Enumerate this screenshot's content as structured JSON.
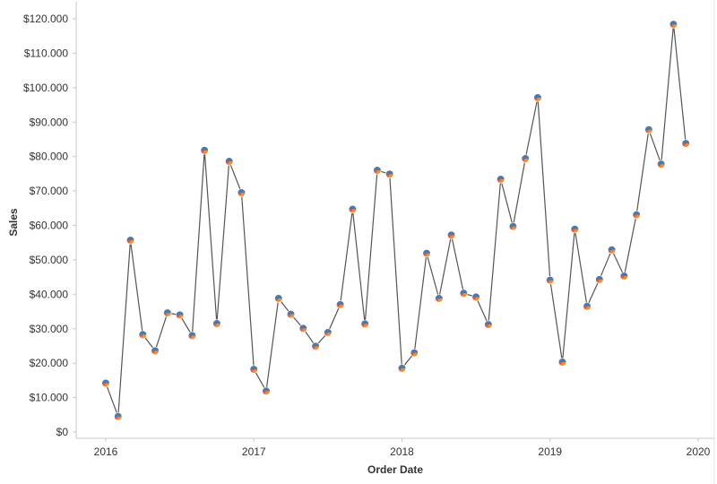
{
  "chart_data": {
    "type": "line",
    "xlabel": "Order Date",
    "ylabel": "Sales",
    "x_ticks": [
      "2016",
      "2017",
      "2018",
      "2019",
      "2020"
    ],
    "y_ticks": [
      "$0",
      "$10.000",
      "$20.000",
      "$30.000",
      "$40.000",
      "$50.000",
      "$60.000",
      "$70.000",
      "$80.000",
      "$90.000",
      "$100.000",
      "$110.000",
      "$120.000"
    ],
    "ylim": [
      0,
      120000
    ],
    "xlim": [
      "2016-01",
      "2020-01"
    ],
    "grid": false,
    "line_color": "#555555",
    "marker_colors": [
      "#4e79a7",
      "#f28e2b",
      "#e15759"
    ],
    "series": [
      {
        "x": [
          "2016-01",
          "2016-02",
          "2016-03",
          "2016-04",
          "2016-05",
          "2016-06",
          "2016-07",
          "2016-08",
          "2016-09",
          "2016-10",
          "2016-11",
          "2016-12",
          "2017-01",
          "2017-02",
          "2017-03",
          "2017-04",
          "2017-05",
          "2017-06",
          "2017-07",
          "2017-08",
          "2017-09",
          "2017-10",
          "2017-11",
          "2017-12",
          "2018-01",
          "2018-02",
          "2018-03",
          "2018-04",
          "2018-05",
          "2018-06",
          "2018-07",
          "2018-08",
          "2018-09",
          "2018-10",
          "2018-11",
          "2018-12",
          "2019-01",
          "2019-02",
          "2019-03",
          "2019-04",
          "2019-05",
          "2019-06",
          "2019-07",
          "2019-08",
          "2019-09",
          "2019-10",
          "2019-11",
          "2019-12"
        ],
        "values": [
          14200,
          4500,
          55700,
          28300,
          23600,
          34600,
          34000,
          28000,
          81800,
          31500,
          78600,
          69500,
          18200,
          11900,
          38800,
          34200,
          30100,
          24900,
          28900,
          37000,
          64700,
          31400,
          76000,
          74900,
          18500,
          23000,
          51900,
          38800,
          57200,
          40300,
          39200,
          31200,
          73400,
          59700,
          79400,
          97100,
          44100,
          20300,
          58900,
          36500,
          44300,
          52900,
          45300,
          63100,
          87800,
          77800,
          118400,
          83800
        ]
      }
    ]
  }
}
